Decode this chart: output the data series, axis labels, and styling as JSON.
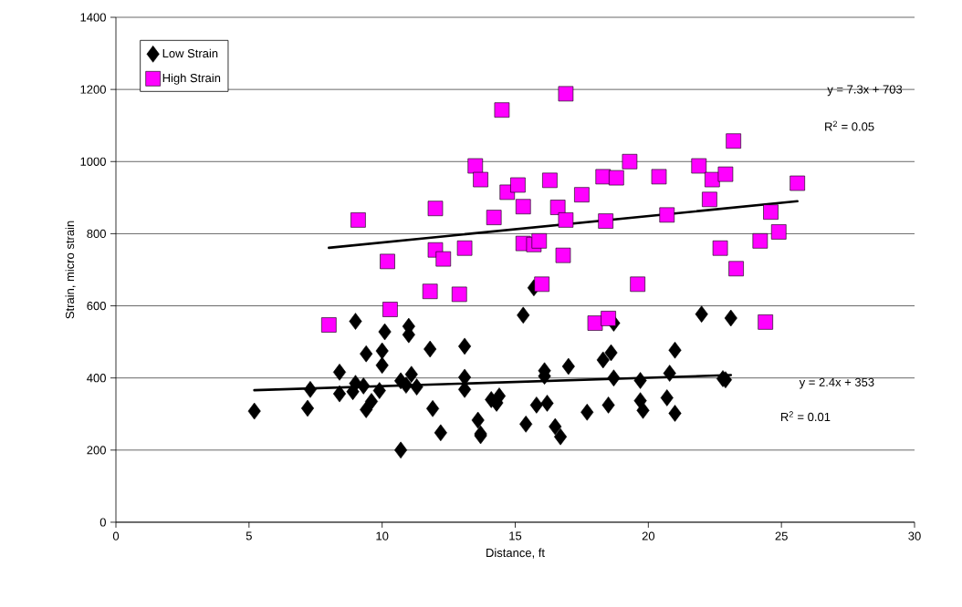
{
  "chart_data": {
    "type": "scatter",
    "xlabel": "Distance, ft",
    "ylabel": "Strain, micro strain",
    "xlim": [
      0,
      30
    ],
    "xticks": [
      0,
      5,
      10,
      15,
      20,
      25,
      30
    ],
    "ylim": [
      0,
      1400
    ],
    "yticks": [
      0,
      200,
      400,
      600,
      800,
      1000,
      1200,
      1400
    ],
    "grid": "y",
    "legend": "top left",
    "series": [
      {
        "name": "Low Strain",
        "color": "#000000",
        "marker": "diamond",
        "x": [
          5.2,
          7.2,
          7.3,
          8.4,
          8.4,
          8.9,
          9.0,
          9.0,
          9.3,
          9.4,
          9.4,
          9.6,
          9.9,
          10.0,
          10.0,
          10.1,
          10.7,
          10.7,
          10.9,
          11.0,
          11.0,
          11.1,
          11.3,
          11.8,
          11.9,
          12.2,
          13.1,
          13.1,
          13.1,
          13.6,
          13.7,
          13.7,
          14.1,
          14.3,
          14.4,
          14.3,
          15.3,
          15.4,
          15.7,
          15.8,
          16.1,
          16.1,
          16.2,
          16.5,
          16.7,
          17.0,
          17.7,
          18.3,
          18.5,
          18.6,
          18.7,
          18.7,
          19.7,
          19.7,
          19.8,
          20.7,
          20.8,
          21.0,
          21.0,
          22.0,
          22.8,
          22.9,
          23.1
        ],
        "values": [
          308,
          316,
          368,
          416,
          356,
          362,
          385,
          557,
          378,
          312,
          467,
          335,
          365,
          435,
          475,
          528,
          200,
          392,
          380,
          520,
          543,
          410,
          375,
          480,
          315,
          248,
          368,
          402,
          488,
          283,
          245,
          240,
          340,
          332,
          350,
          330,
          574,
          272,
          650,
          325,
          405,
          420,
          330,
          265,
          237,
          432,
          305,
          450,
          325,
          470,
          400,
          552,
          393,
          337,
          310,
          345,
          413,
          302,
          477,
          577,
          398,
          395,
          566
        ]
      },
      {
        "name": "High Strain",
        "color": "#ff00ff",
        "marker": "square",
        "x": [
          8.0,
          9.1,
          10.2,
          10.3,
          11.8,
          12.0,
          12.0,
          12.3,
          12.9,
          13.1,
          13.5,
          13.7,
          14.2,
          14.5,
          14.7,
          15.1,
          15.3,
          15.3,
          15.7,
          15.9,
          16.0,
          16.3,
          16.6,
          16.8,
          16.9,
          16.9,
          17.5,
          18.0,
          18.3,
          18.4,
          18.5,
          18.8,
          19.3,
          19.6,
          20.4,
          20.7,
          21.9,
          22.3,
          22.4,
          22.7,
          22.9,
          23.2,
          23.3,
          24.2,
          24.4,
          24.6,
          24.9,
          25.6
        ],
        "values": [
          547,
          838,
          723,
          590,
          640,
          755,
          870,
          730,
          632,
          760,
          988,
          950,
          845,
          1143,
          915,
          935,
          875,
          773,
          770,
          780,
          660,
          948,
          873,
          740,
          838,
          1188,
          908,
          552,
          958,
          835,
          565,
          955,
          1000,
          660,
          958,
          852,
          988,
          895,
          950,
          760,
          965,
          1057,
          703,
          780,
          555,
          860,
          805,
          940
        ]
      },
      {
        "type": "line",
        "color": "#000000",
        "marker": "none",
        "line_style": "solid",
        "x": [
          5.2,
          23.1
        ],
        "values": [
          366,
          408
        ]
      },
      {
        "type": "line",
        "color": "#000000",
        "marker": "none",
        "line_style": "solid",
        "x": [
          8.0,
          25.6
        ],
        "values": [
          761,
          890
        ]
      }
    ],
    "annotations": [
      "y = 7.3x + 703",
      "R$^{2}$ = 0.05",
      "y = 2.4x + 353",
      "R$^{2}$ = 0.01"
    ]
  }
}
